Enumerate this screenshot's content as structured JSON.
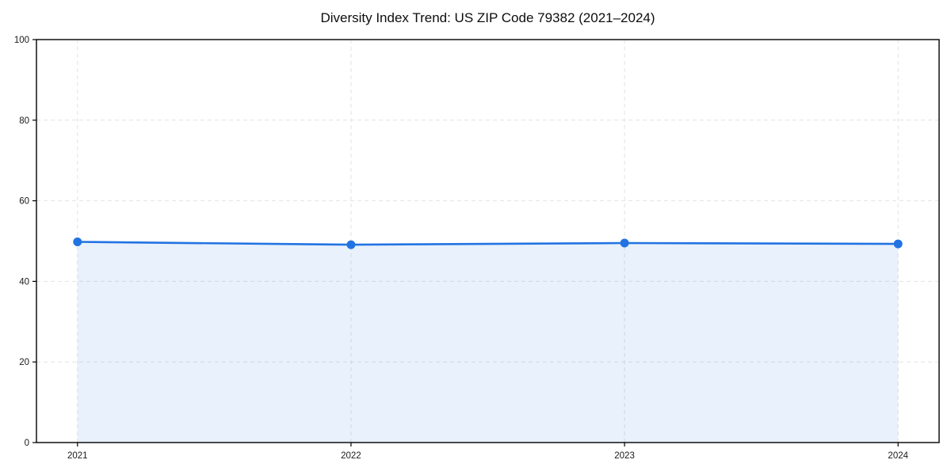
{
  "chart_data": {
    "type": "area",
    "title": "Diversity Index Trend: US ZIP Code 79382 (2021–2024)",
    "x": [
      2021,
      2022,
      2023,
      2024
    ],
    "xticks": [
      "2021",
      "2022",
      "2023",
      "2024"
    ],
    "series": [
      {
        "name": "Diversity Index",
        "values": [
          49.8,
          49.1,
          49.5,
          49.3
        ]
      }
    ],
    "yticks": [
      0,
      20,
      40,
      60,
      80,
      100
    ],
    "ylim": [
      0,
      100
    ],
    "xlim": [
      2020.85,
      2024.15
    ],
    "xlabel": "",
    "ylabel": "",
    "grid": true,
    "legend_position": "none",
    "line_color": "#2273e2",
    "marker_color": "#2273e2",
    "fill_color": "rgba(34, 115, 226, 0.10)",
    "grid_color": "#e2e2e2",
    "axis_color": "#000000",
    "tick_label_color": "#1a1a1a"
  }
}
